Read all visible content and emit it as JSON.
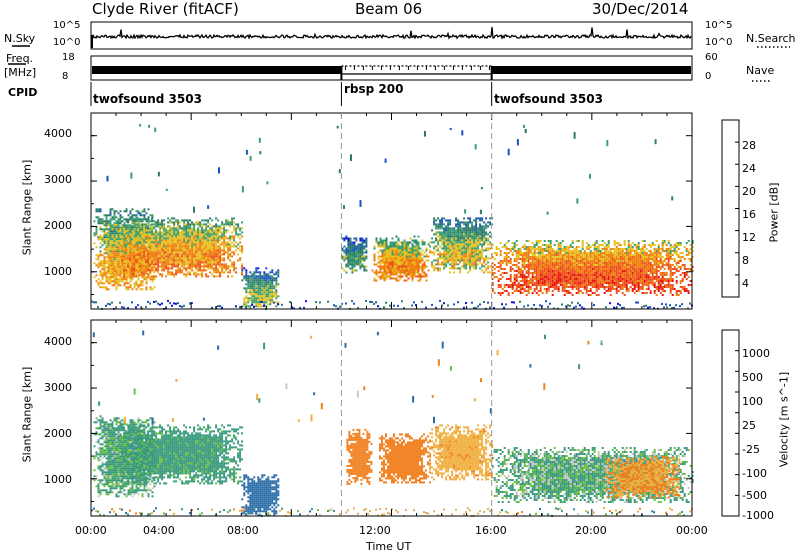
{
  "header": {
    "station": "Clyde River (fitACF)",
    "beam": "Beam 06",
    "date": "30/Dec/2014"
  },
  "top_panels": {
    "nsky_label": "N.Sky",
    "nsky_ticks": [
      "10^5",
      "10^0"
    ],
    "nsearch_label": "N.Search",
    "nsearch_ticks": [
      "10^5",
      "10^0"
    ],
    "freq_label": "Freq.",
    "freq_unit": "[MHz]",
    "freq_ticks": [
      "18",
      "8"
    ],
    "nave_label": "Nave",
    "nave_ticks": [
      "60",
      "0"
    ],
    "cpid_label": "CPID",
    "cpid_segments": [
      {
        "name": "twofsound 3503",
        "start_h": 0,
        "end_h": 10
      },
      {
        "name": "rbsp 200",
        "start_h": 10,
        "end_h": 16
      },
      {
        "name": "twofsound 3503",
        "start_h": 16,
        "end_h": 24
      }
    ]
  },
  "axes": {
    "ylabel": "Slant Range [km]",
    "y_ticks": [
      "1000",
      "2000",
      "3000",
      "4000"
    ],
    "x_ticks": [
      "00:00",
      "04:00",
      "08:00",
      "12:00",
      "16:00",
      "20:00",
      "00:00"
    ],
    "xlabel": "Time UT"
  },
  "power_scale": {
    "title": "Power [dB]",
    "labels": [
      "4",
      "8",
      "12",
      "16",
      "20",
      "24",
      "28"
    ],
    "colors": [
      "#1010d8",
      "#1a50c8",
      "#2e7a6a",
      "#3aa070",
      "#e8c020",
      "#f08010",
      "#f05020",
      "#e81010"
    ]
  },
  "velocity_scale": {
    "title": "Velocity [m s^-1]",
    "labels": [
      "1000",
      "500",
      "100",
      "25",
      "-25",
      "-100",
      "-500",
      "-1000"
    ],
    "colors": [
      "#2040b0",
      "#2a6ca8",
      "#3a9a80",
      "#6ac040",
      "#c8c8c8",
      "#f0b040",
      "#f08020",
      "#f04020",
      "#e81010"
    ]
  },
  "chart_data": [
    {
      "type": "heatmap",
      "title": "Power [dB]",
      "xlabel": "Time UT",
      "ylabel": "Slant Range [km]",
      "xlim": [
        0,
        24
      ],
      "ylim": [
        180,
        4500
      ],
      "clim": [
        0,
        30
      ],
      "regions": [
        {
          "t0": 0.1,
          "t1": 2.5,
          "r0": 600,
          "r1": 2400,
          "value": 22
        },
        {
          "t0": 1.2,
          "t1": 6.0,
          "r0": 900,
          "r1": 2200,
          "value": 24
        },
        {
          "t0": 6.0,
          "t1": 7.5,
          "r0": 200,
          "r1": 1100,
          "value": 18
        },
        {
          "t0": 10.0,
          "t1": 11.0,
          "r0": 1000,
          "r1": 1800,
          "value": 16
        },
        {
          "t0": 11.2,
          "t1": 13.5,
          "r0": 800,
          "r1": 1800,
          "value": 24
        },
        {
          "t0": 13.5,
          "t1": 16.0,
          "r0": 1000,
          "r1": 2200,
          "value": 20
        },
        {
          "t0": 16.0,
          "t1": 24.0,
          "r0": 500,
          "r1": 1700,
          "value": 28
        }
      ]
    },
    {
      "type": "heatmap",
      "title": "Velocity [m s^-1]",
      "xlabel": "Time UT",
      "ylabel": "Slant Range [km]",
      "xlim": [
        0,
        24
      ],
      "ylim": [
        180,
        4500
      ],
      "clim": [
        -1000,
        1000
      ],
      "regions": [
        {
          "t0": 0.1,
          "t1": 2.5,
          "r0": 600,
          "r1": 2400,
          "value": 100
        },
        {
          "t0": 1.2,
          "t1": 6.0,
          "r0": 900,
          "r1": 2200,
          "value": 150
        },
        {
          "t0": 6.0,
          "t1": 7.5,
          "r0": 200,
          "r1": 1100,
          "value": 500
        },
        {
          "t0": 10.2,
          "t1": 11.2,
          "r0": 900,
          "r1": 2100,
          "value": -500
        },
        {
          "t0": 11.5,
          "t1": 13.5,
          "r0": 900,
          "r1": 2000,
          "value": -600
        },
        {
          "t0": 13.5,
          "t1": 16.0,
          "r0": 1000,
          "r1": 2200,
          "value": -200
        },
        {
          "t0": 16.0,
          "t1": 24.0,
          "r0": 500,
          "r1": 1700,
          "value": 80
        },
        {
          "t0": 20.5,
          "t1": 23.5,
          "r0": 600,
          "r1": 1500,
          "value": -300
        }
      ]
    }
  ]
}
